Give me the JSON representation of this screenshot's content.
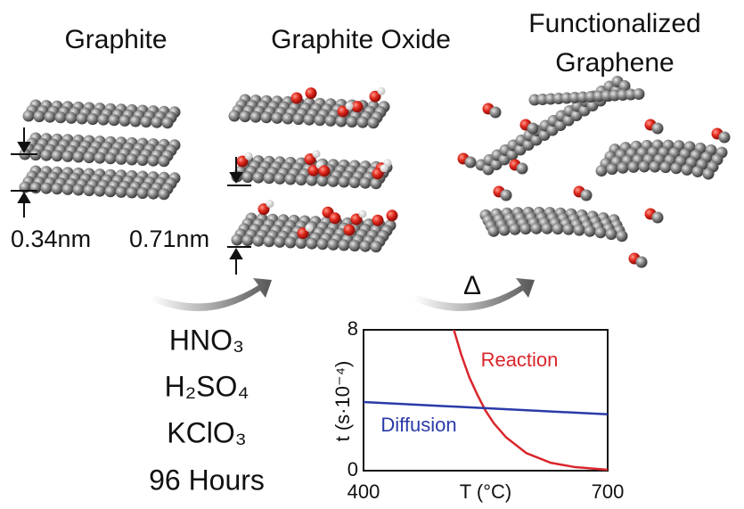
{
  "labels": {
    "graphite": "Graphite",
    "graphite_oxide": "Graphite Oxide",
    "functionalized": [
      "Functionalized",
      "Graphene"
    ]
  },
  "spacings": [
    "0.34nm",
    "0.71nm"
  ],
  "heat_symbol": "Δ",
  "conditions": [
    "HNO₃",
    "H₂SO₄",
    "KClO₃",
    "96 Hours"
  ],
  "chart_data": {
    "type": "line",
    "xlabel": "T (°C)",
    "ylabel": "t (s·10⁻⁴)",
    "xlim": [
      400,
      700
    ],
    "ylim": [
      0,
      8
    ],
    "xticks": [
      400,
      700
    ],
    "yticks": [
      0,
      8
    ],
    "series": [
      {
        "name": "Reaction",
        "color": "#d9262c",
        "x": [
          511,
          520,
          530,
          540,
          550,
          560,
          575,
          600,
          630,
          660,
          700
        ],
        "values": [
          8,
          6.6,
          5.3,
          4.3,
          3.4,
          2.7,
          1.9,
          1.0,
          0.45,
          0.2,
          0.05
        ]
      },
      {
        "name": "Diffusion",
        "color": "#2a3aa8",
        "x": [
          400,
          700
        ],
        "values": [
          3.9,
          3.2
        ]
      }
    ]
  }
}
